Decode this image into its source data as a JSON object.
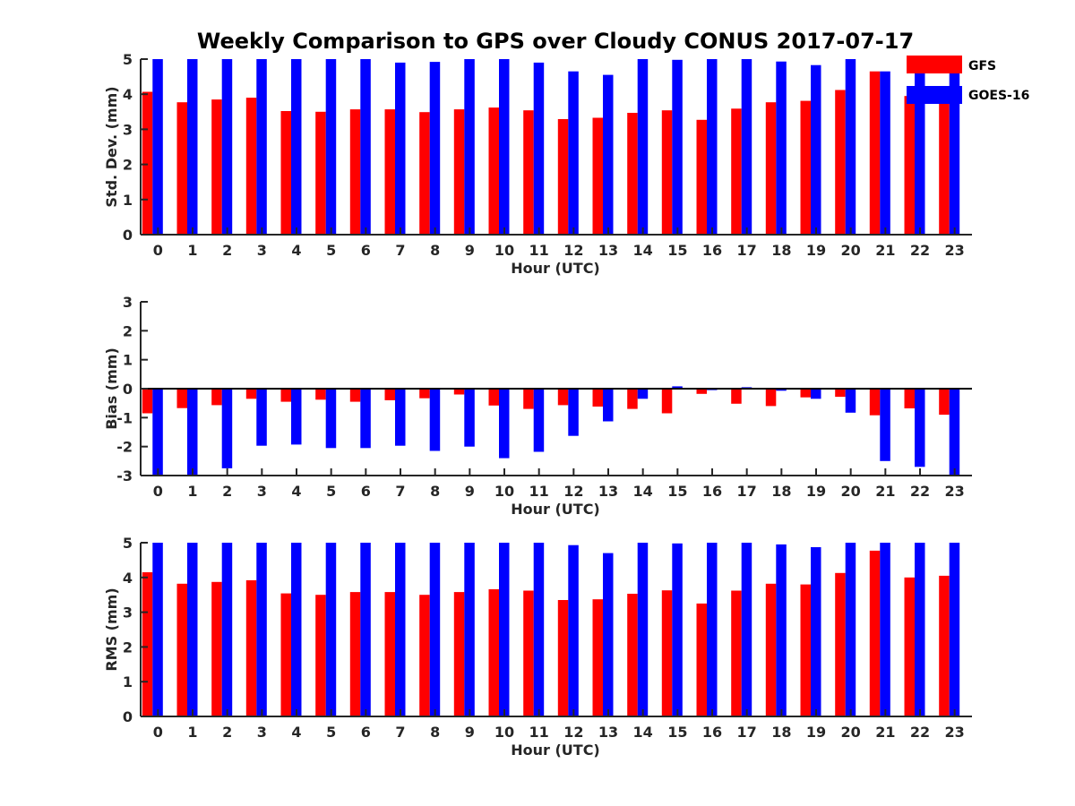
{
  "figure": {
    "title": "Weekly Comparison to GPS over Cloudy CONUS 2017-07-17"
  },
  "legend": {
    "placement": "top-right",
    "entries": [
      {
        "label": "GFS",
        "color": "#ff0000"
      },
      {
        "label": "GOES-16",
        "color": "#0000ff"
      }
    ]
  },
  "chart_data": [
    {
      "type": "bar",
      "categories": [
        "0",
        "1",
        "2",
        "3",
        "4",
        "5",
        "6",
        "7",
        "8",
        "9",
        "10",
        "11",
        "12",
        "13",
        "14",
        "15",
        "16",
        "17",
        "18",
        "19",
        "20",
        "21",
        "22",
        "23"
      ],
      "xlabel": "Hour (UTC)",
      "ylabel": "Std. Dev. (mm)",
      "ylim": [
        0,
        5
      ],
      "yticks": [
        "0",
        "1",
        "2",
        "3",
        "4",
        "5"
      ],
      "series": [
        {
          "name": "GFS",
          "color": "#ff0000",
          "values": [
            4.07,
            3.77,
            3.85,
            3.9,
            3.52,
            3.5,
            3.57,
            3.57,
            3.49,
            3.57,
            3.62,
            3.54,
            3.29,
            3.33,
            3.47,
            3.54,
            3.27,
            3.59,
            3.77,
            3.81,
            4.12,
            4.65,
            3.95,
            3.8
          ]
        },
        {
          "name": "GOES-16",
          "color": "#0000ff",
          "values": [
            5,
            5,
            5,
            5,
            5,
            5,
            5,
            4.9,
            4.92,
            5,
            5,
            4.9,
            4.65,
            4.55,
            5,
            4.98,
            5,
            5,
            4.93,
            4.83,
            5,
            4.65,
            5,
            4.6
          ]
        }
      ]
    },
    {
      "type": "bar",
      "categories": [
        "0",
        "1",
        "2",
        "3",
        "4",
        "5",
        "6",
        "7",
        "8",
        "9",
        "10",
        "11",
        "12",
        "13",
        "14",
        "15",
        "16",
        "17",
        "18",
        "19",
        "20",
        "21",
        "22",
        "23"
      ],
      "xlabel": "Hour (UTC)",
      "ylabel": "Bias (mm)",
      "ylim": [
        -3,
        3
      ],
      "yticks": [
        "-3",
        "-2",
        "-1",
        "0",
        "1",
        "2",
        "3"
      ],
      "series": [
        {
          "name": "GFS",
          "color": "#ff0000",
          "values": [
            -0.85,
            -0.67,
            -0.57,
            -0.35,
            -0.45,
            -0.38,
            -0.45,
            -0.4,
            -0.33,
            -0.2,
            -0.58,
            -0.7,
            -0.57,
            -0.62,
            -0.7,
            -0.85,
            -0.18,
            -0.52,
            -0.6,
            -0.3,
            -0.28,
            -0.92,
            -0.68,
            -0.9
          ]
        },
        {
          "name": "GOES-16",
          "color": "#0000ff",
          "values": [
            -3,
            -3,
            -2.75,
            -1.97,
            -1.93,
            -2.05,
            -2.05,
            -1.97,
            -2.15,
            -2.0,
            -2.4,
            -2.18,
            -1.63,
            -1.13,
            -0.35,
            0.08,
            -0.05,
            0.05,
            -0.07,
            -0.35,
            -0.83,
            -2.5,
            -2.7,
            -3
          ]
        }
      ]
    },
    {
      "type": "bar",
      "categories": [
        "0",
        "1",
        "2",
        "3",
        "4",
        "5",
        "6",
        "7",
        "8",
        "9",
        "10",
        "11",
        "12",
        "13",
        "14",
        "15",
        "16",
        "17",
        "18",
        "19",
        "20",
        "21",
        "22",
        "23"
      ],
      "xlabel": "Hour (UTC)",
      "ylabel": "RMS (mm)",
      "ylim": [
        0,
        5
      ],
      "yticks": [
        "0",
        "1",
        "2",
        "3",
        "4",
        "5"
      ],
      "series": [
        {
          "name": "GFS",
          "color": "#ff0000",
          "values": [
            4.15,
            3.82,
            3.87,
            3.92,
            3.54,
            3.5,
            3.58,
            3.58,
            3.5,
            3.58,
            3.66,
            3.62,
            3.35,
            3.37,
            3.53,
            3.63,
            3.25,
            3.62,
            3.82,
            3.8,
            4.13,
            4.77,
            4.0,
            4.05
          ]
        },
        {
          "name": "GOES-16",
          "color": "#0000ff",
          "values": [
            5,
            5,
            5,
            5,
            5,
            5,
            5,
            5,
            5,
            5,
            5,
            5,
            4.93,
            4.7,
            5,
            4.98,
            5,
            5,
            4.95,
            4.87,
            5,
            5,
            5,
            5
          ]
        }
      ]
    }
  ]
}
